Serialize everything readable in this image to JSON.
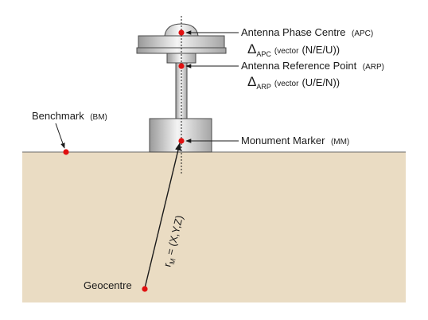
{
  "labels": {
    "apc": {
      "name": "Antenna Phase Centre",
      "abbr": "(APC)"
    },
    "apc_vector": {
      "symbol": "Δ",
      "subscript": "APC",
      "note": "(vector",
      "components": "(N/E/U))"
    },
    "arp": {
      "name": "Antenna Reference Point",
      "abbr": "(ARP)"
    },
    "arp_vector": {
      "symbol": "Δ",
      "subscript": "ARP",
      "note": "(vector",
      "components": "(U/E/N))"
    },
    "benchmark": {
      "name": "Benchmark",
      "abbr": "(BM)"
    },
    "mm": {
      "name": "Monument Marker",
      "abbr": "(MM)"
    },
    "geocentre": "Geocentre",
    "position_vector": {
      "r": "r",
      "subscript": "M",
      "equation": " = (X,Y,Z)"
    }
  },
  "colors": {
    "ground": "#eadcc3",
    "point": "#e01010",
    "metal_light": "#f2f2f2",
    "metal_dark": "#8a8a8a",
    "outline": "#4a4a4a"
  }
}
